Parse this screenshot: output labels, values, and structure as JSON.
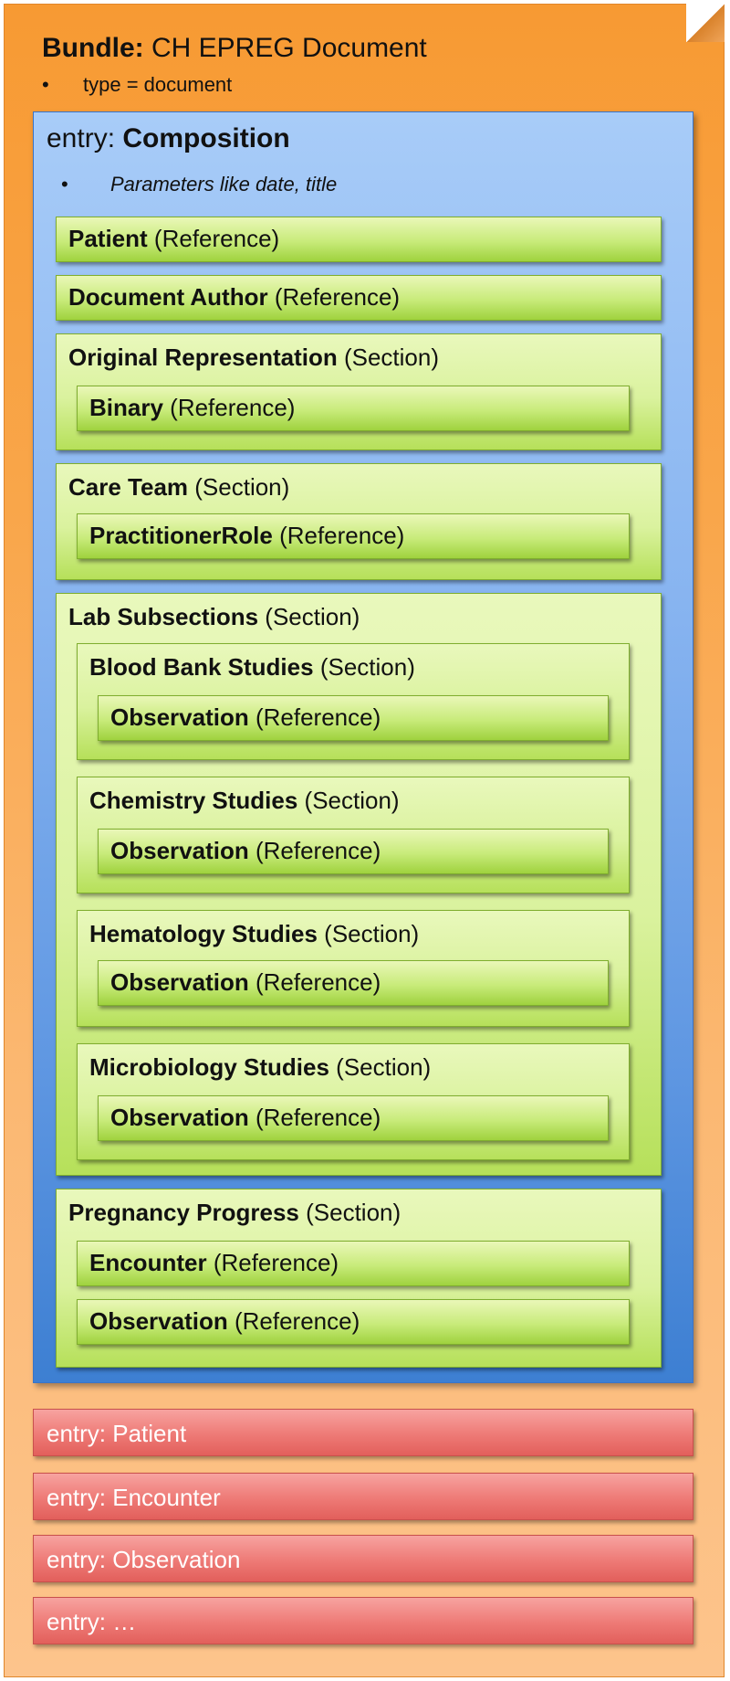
{
  "bundle": {
    "title_bold": "Bundle:",
    "title_rest": "CH EPREG Document",
    "bullet": "type = document"
  },
  "composition": {
    "title_prefix": "entry:",
    "title_bold": "Composition",
    "bullet": "Parameters like date, title",
    "patient": {
      "name": "Patient",
      "kind": "(Reference)"
    },
    "author": {
      "name": "Document Author",
      "kind": "(Reference)"
    },
    "original": {
      "name": "Original Representation",
      "kind": "(Section)",
      "child": {
        "name": "Binary",
        "kind": "(Reference)"
      }
    },
    "care_team": {
      "name": "Care Team",
      "kind": "(Section)",
      "child": {
        "name": "PractitionerRole",
        "kind": "(Reference)"
      }
    },
    "lab": {
      "name": "Lab Subsections",
      "kind": "(Section)",
      "blood_bank": {
        "name": "Blood Bank Studies",
        "kind": "(Section)",
        "child": {
          "name": "Observation",
          "kind": "(Reference)"
        }
      },
      "chemistry": {
        "name": "Chemistry Studies",
        "kind": "(Section)",
        "child": {
          "name": "Observation",
          "kind": "(Reference)"
        }
      },
      "hematology": {
        "name": "Hematology Studies",
        "kind": "(Section)",
        "child": {
          "name": "Observation",
          "kind": "(Reference)"
        }
      },
      "microbiology": {
        "name": "Microbiology Studies",
        "kind": "(Section)",
        "child": {
          "name": "Observation",
          "kind": "(Reference)"
        }
      }
    },
    "pregnancy": {
      "name": "Pregnancy Progress",
      "kind": "(Section)",
      "encounter": {
        "name": "Encounter",
        "kind": "(Reference)"
      },
      "observation": {
        "name": "Observation",
        "kind": "(Reference)"
      }
    }
  },
  "entries": [
    "entry: Patient",
    "entry: Encounter",
    "entry: Observation",
    "entry: …"
  ],
  "colors": {
    "bundle": "#f79a33",
    "composition": "#6fa4e8",
    "reference": "#c8eb7a",
    "entry": "#ee7a76"
  }
}
